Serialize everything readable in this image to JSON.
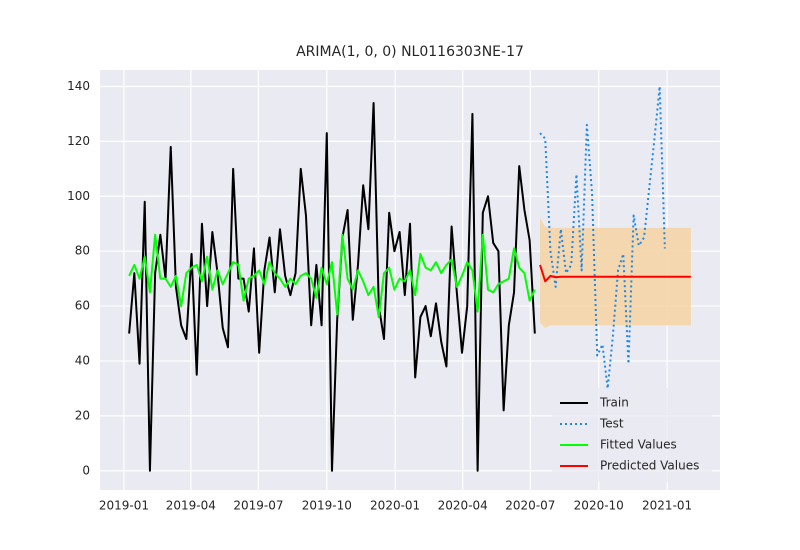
{
  "chart_data": {
    "type": "line",
    "title": "ARIMA(1, 0, 0) NL0116303NE-17",
    "xlim": [
      -4.6,
      114.6
    ],
    "xticks": [
      {
        "value": 0,
        "label": "2019-01"
      },
      {
        "value": 12.86,
        "label": "2019-04"
      },
      {
        "value": 25.86,
        "label": "2019-07"
      },
      {
        "value": 39,
        "label": "2019-10"
      },
      {
        "value": 52.14,
        "label": "2020-01"
      },
      {
        "value": 65.14,
        "label": "2020-04"
      },
      {
        "value": 78.14,
        "label": "2020-07"
      },
      {
        "value": 91.29,
        "label": "2020-10"
      },
      {
        "value": 104.43,
        "label": "2021-01"
      }
    ],
    "ylim": [
      -7,
      146
    ],
    "yticks": [
      0,
      20,
      40,
      60,
      80,
      100,
      120,
      140
    ],
    "grid": true,
    "legend": "lower right",
    "series": [
      {
        "name": "Train",
        "color": "#000000",
        "style": "solid",
        "x": [
          1,
          2,
          3,
          4,
          5,
          6,
          7,
          8,
          9,
          10,
          11,
          12,
          13,
          14,
          15,
          16,
          17,
          18,
          19,
          20,
          21,
          22,
          23,
          24,
          25,
          26,
          27,
          28,
          29,
          30,
          31,
          32,
          33,
          34,
          35,
          36,
          37,
          38,
          39,
          40,
          41,
          42,
          43,
          44,
          45,
          46,
          47,
          48,
          49,
          50,
          51,
          52,
          53,
          54,
          55,
          56,
          57,
          58,
          59,
          60,
          61,
          62,
          63,
          64,
          65,
          66,
          67,
          68,
          69,
          70,
          71,
          72,
          73,
          74,
          75,
          76,
          77,
          78,
          79
        ],
        "values": [
          50,
          72,
          39,
          98,
          0,
          72,
          86,
          70,
          118,
          67,
          53,
          48,
          79,
          35,
          90,
          60,
          87,
          72,
          52,
          45,
          110,
          70,
          70,
          58,
          81,
          43,
          73,
          85,
          65,
          88,
          71,
          64,
          72,
          110,
          93,
          53,
          75,
          53,
          123,
          0,
          55,
          85,
          95,
          55,
          75,
          104,
          88,
          134,
          60,
          48,
          94,
          80,
          87,
          64,
          90,
          34,
          56,
          60,
          49,
          61,
          47,
          38,
          89,
          65,
          43,
          60,
          130,
          0,
          94,
          100,
          83,
          80,
          22,
          53,
          65,
          111,
          95,
          84,
          50
        ]
      },
      {
        "name": "Test",
        "color": "#1e88e5",
        "style": "dotted",
        "x": [
          80,
          81,
          82,
          83,
          84,
          85,
          86,
          87,
          88,
          89,
          90,
          91,
          92,
          93,
          94,
          95,
          96,
          97,
          98,
          99,
          100,
          101,
          102,
          103,
          104
        ],
        "values": [
          123,
          121,
          80,
          67,
          88,
          72,
          75,
          108,
          73,
          126,
          101,
          42,
          46,
          30,
          49,
          73,
          79,
          39,
          93,
          82,
          85,
          103,
          121,
          140,
          81
        ]
      },
      {
        "name": "Fitted Values",
        "color": "#00ff00",
        "style": "solid",
        "x": [
          1,
          2,
          3,
          4,
          5,
          6,
          7,
          8,
          9,
          10,
          11,
          12,
          13,
          14,
          15,
          16,
          17,
          18,
          19,
          20,
          21,
          22,
          23,
          24,
          25,
          26,
          27,
          28,
          29,
          30,
          31,
          32,
          33,
          34,
          35,
          36,
          37,
          38,
          39,
          40,
          41,
          42,
          43,
          44,
          45,
          46,
          47,
          48,
          49,
          50,
          51,
          52,
          53,
          54,
          55,
          56,
          57,
          58,
          59,
          60,
          61,
          62,
          63,
          64,
          65,
          66,
          67,
          68,
          69,
          70,
          71,
          72,
          73,
          74,
          75,
          76,
          77,
          78,
          79
        ],
        "values": [
          71,
          75,
          70,
          78,
          65,
          86,
          70,
          70,
          67,
          71,
          60,
          72,
          74,
          75,
          69,
          78,
          66,
          73,
          68,
          72,
          76,
          75,
          62,
          70,
          71,
          73,
          68,
          76,
          72,
          70,
          67,
          70,
          68,
          71,
          72,
          70,
          63,
          74,
          68,
          76,
          57,
          86,
          70,
          66,
          73,
          69,
          64,
          67,
          56,
          72,
          74,
          66,
          70,
          69,
          73,
          64,
          79,
          74,
          73,
          76,
          72,
          75,
          77,
          67,
          71,
          76,
          73,
          58,
          86,
          66,
          65,
          68,
          69,
          70,
          81,
          74,
          72,
          62,
          66
        ]
      },
      {
        "name": "Predicted Values",
        "color": "#ff0000",
        "style": "solid",
        "x": [
          80,
          81,
          82,
          83,
          84,
          85,
          86,
          87,
          88,
          89,
          90,
          91,
          92,
          93,
          94,
          95,
          96,
          97,
          98,
          99,
          100,
          101,
          102,
          103,
          104,
          105,
          106,
          107,
          108,
          109
        ],
        "values": [
          75,
          69,
          71,
          70.5,
          70.7,
          70.7,
          70.7,
          70.7,
          70.7,
          70.7,
          70.7,
          70.7,
          70.7,
          70.7,
          70.7,
          70.7,
          70.7,
          70.7,
          70.7,
          70.7,
          70.7,
          70.7,
          70.7,
          70.7,
          70.7,
          70.7,
          70.7,
          70.7,
          70.7,
          70.7
        ],
        "interval": {
          "color": "#f5d5a6",
          "lower": [
            54,
            52,
            53,
            53,
            53,
            53,
            53,
            53,
            53,
            53,
            53,
            53,
            53,
            53,
            53,
            53,
            53,
            53,
            53,
            53,
            53,
            53,
            53,
            53,
            53,
            53,
            53,
            53,
            53,
            53
          ],
          "upper": [
            92,
            89,
            88.5,
            88.5,
            88.5,
            88.5,
            88.5,
            88.5,
            88.5,
            88.5,
            88.5,
            88.5,
            88.5,
            88.5,
            88.5,
            88.5,
            88.5,
            88.5,
            88.5,
            88.5,
            88.5,
            88.5,
            88.5,
            88.5,
            88.5,
            88.5,
            88.5,
            88.5,
            88.5,
            88.5
          ]
        }
      }
    ]
  }
}
